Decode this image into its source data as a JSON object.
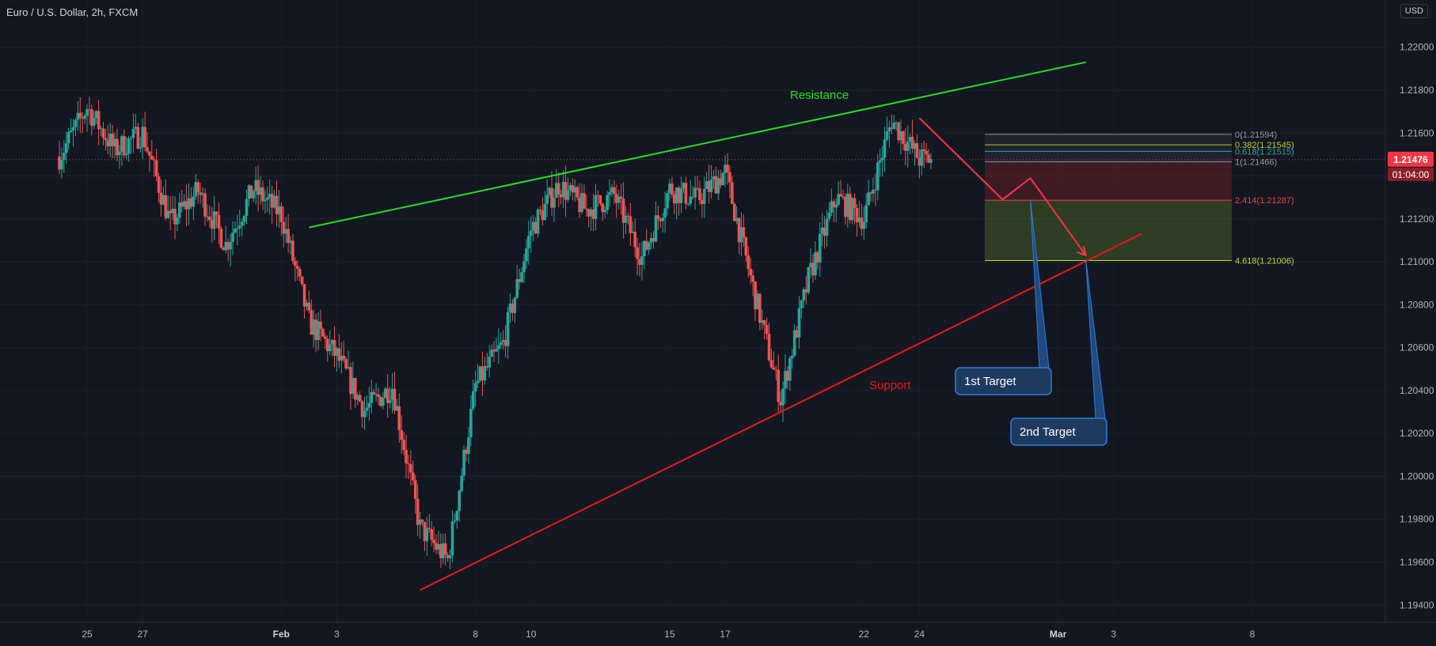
{
  "header": {
    "symbol": "Euro / U.S. Dollar, 2h, FXCM",
    "currency": "USD"
  },
  "chart_data": {
    "type": "candlestick",
    "x_ticks": [
      "25",
      "27",
      "Feb",
      "3",
      "8",
      "10",
      "15",
      "17",
      "22",
      "24",
      "Mar",
      "3",
      "8"
    ],
    "y_ticks": [
      "1.22000",
      "1.21800",
      "1.21600",
      "1.21400",
      "1.21200",
      "1.21000",
      "1.20800",
      "1.20600",
      "1.20400",
      "1.20200",
      "1.20000",
      "1.19800",
      "1.19600",
      "1.19400"
    ],
    "y_range": [
      1.1932,
      1.2222
    ],
    "x_range": [
      "Jan 24",
      "Mar 10"
    ],
    "last_price": {
      "value": 1.21476,
      "label": "1.21476",
      "countdown": "01:04:00",
      "color": "#f23645"
    },
    "price_path": [
      [
        "Jan 24",
        1.2149
      ],
      [
        "Jan 25",
        1.2172
      ],
      [
        "Jan 26",
        1.2152
      ],
      [
        "Jan 27",
        1.216
      ],
      [
        "Jan 28",
        1.2118
      ],
      [
        "Jan 29",
        1.2133
      ],
      [
        "Jan 30",
        1.2108
      ],
      [
        "Jan 31",
        1.2134
      ],
      [
        "Feb 1",
        1.2122
      ],
      [
        "Feb 2",
        1.2072
      ],
      [
        "Feb 3",
        1.2056
      ],
      [
        "Feb 4",
        1.2031
      ],
      [
        "Feb 5",
        1.2042
      ],
      [
        "Feb 6",
        1.1976
      ],
      [
        "Feb 7",
        1.1961
      ],
      [
        "Feb 8",
        1.2042
      ],
      [
        "Feb 9",
        1.2062
      ],
      [
        "Feb 10",
        1.2115
      ],
      [
        "Feb 11",
        1.2136
      ],
      [
        "Feb 12",
        1.2124
      ],
      [
        "Feb 13",
        1.2131
      ],
      [
        "Feb 14",
        1.2102
      ],
      [
        "Feb 15",
        1.2134
      ],
      [
        "Feb 16",
        1.2129
      ],
      [
        "Feb 17",
        1.2142
      ],
      [
        "Feb 18",
        1.2088
      ],
      [
        "Feb 19",
        1.2036
      ],
      [
        "Feb 20",
        1.2092
      ],
      [
        "Feb 21",
        1.213
      ],
      [
        "Feb 22",
        1.212
      ],
      [
        "Feb 23",
        1.2166
      ],
      [
        "Feb 24",
        1.2148
      ]
    ],
    "trendlines": [
      {
        "name": "Resistance",
        "color": "#23e01f",
        "from": [
          "Feb 2",
          1.2116
        ],
        "to": [
          "Mar 2",
          1.2193
        ]
      },
      {
        "name": "Support",
        "color": "#e31b1b",
        "from": [
          "Feb 6",
          1.1947
        ],
        "to": [
          "Mar 4",
          1.2113
        ]
      }
    ],
    "fib_levels": [
      {
        "ratio": "0",
        "price": 1.21594,
        "label": "0(1.21594)",
        "color": "#9598a1"
      },
      {
        "ratio": "0.382",
        "price": 1.21545,
        "label": "0.382(1.21545)",
        "color": "#c0ca33"
      },
      {
        "ratio": "0.618",
        "price": 1.21515,
        "label": "0.618(1.21515)",
        "color": "#26a69a"
      },
      {
        "ratio": "1",
        "price": 1.21466,
        "label": "1(1.21466)",
        "color": "#9598a1"
      },
      {
        "ratio": "2.414",
        "price": 1.21287,
        "label": "2.414(1.21287)",
        "color": "#e04545"
      },
      {
        "ratio": "4.618",
        "price": 1.21006,
        "label": "4.618(1.21006)",
        "color": "#b2e02b"
      }
    ],
    "projection_path": [
      [
        "Feb 24",
        1.2167
      ],
      [
        "Feb 27",
        1.2129
      ],
      [
        "Feb 28",
        1.2139
      ],
      [
        "Mar 2",
        1.2103
      ]
    ],
    "annotations": [
      {
        "text": "1st Target",
        "points_to": [
          "Feb 28",
          1.2129
        ]
      },
      {
        "text": "2nd Target",
        "points_to": [
          "Mar 2",
          1.2101
        ]
      }
    ],
    "colors": {
      "background": "#131722",
      "up": "#26a69a",
      "down": "#ef5350",
      "callout_fill": "#1e3a5f",
      "callout_border": "#2f7ed8"
    }
  }
}
